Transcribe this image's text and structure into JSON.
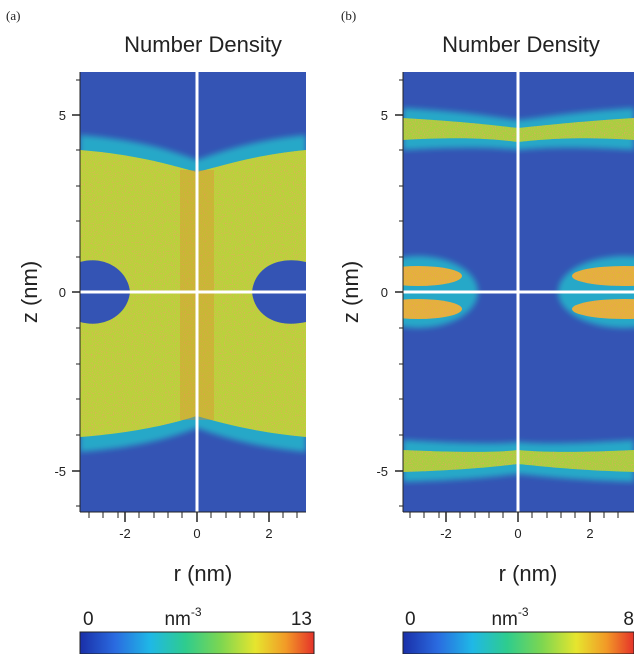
{
  "chart_data": [
    {
      "type": "heatmap",
      "panel_tag": "(a)",
      "title": "Number Density",
      "xlabel": "r (nm)",
      "ylabel": "z (nm)",
      "xlim": [
        -3.2,
        3.2
      ],
      "ylim": [
        -6.2,
        6.2
      ],
      "x_ticks": [
        -2,
        0,
        2
      ],
      "x_tick_labels": [
        "-2",
        "0",
        "2"
      ],
      "y_ticks": [
        -5,
        0,
        5
      ],
      "y_tick_labels": [
        "-5",
        "0",
        "5"
      ],
      "features": {
        "density_band_z": [
          -4.2,
          4.2
        ],
        "pore_inner_radius_nm": 1.3,
        "edge_half_thickness_nm": 1.05
      },
      "colorbar": {
        "min": 0,
        "max": 13,
        "min_label": "0",
        "max_label": "13",
        "unit": "nm",
        "unit_exp": "-3"
      }
    },
    {
      "type": "heatmap",
      "panel_tag": "(b)",
      "title": "Number Density",
      "xlabel": "r (nm)",
      "ylabel": "z (nm)",
      "xlim": [
        -3.2,
        3.2
      ],
      "ylim": [
        -6.2,
        6.2
      ],
      "x_ticks": [
        -2,
        0,
        2
      ],
      "x_tick_labels": [
        "-2",
        "0",
        "2"
      ],
      "y_ticks": [
        -5,
        0,
        5
      ],
      "y_tick_labels": [
        "-5",
        "0",
        "5"
      ],
      "features": {
        "layer_z": [
          4.7,
          -4.7
        ],
        "inner_layers_z": [
          0.45,
          -0.45
        ],
        "inner_layer_start_r": 1.6
      },
      "colorbar": {
        "min": 0,
        "max": 8,
        "min_label": "0",
        "max_label": "8",
        "unit": "nm",
        "unit_exp": "-3"
      }
    }
  ],
  "colors": {
    "background_field": "#3454b4",
    "axis_lines": "#ffffff",
    "colormap": [
      "#1a2fa8",
      "#2a6be0",
      "#1fb8e6",
      "#2ecc8e",
      "#7cd651",
      "#e6e52e",
      "#f29a27",
      "#e5322a"
    ]
  }
}
